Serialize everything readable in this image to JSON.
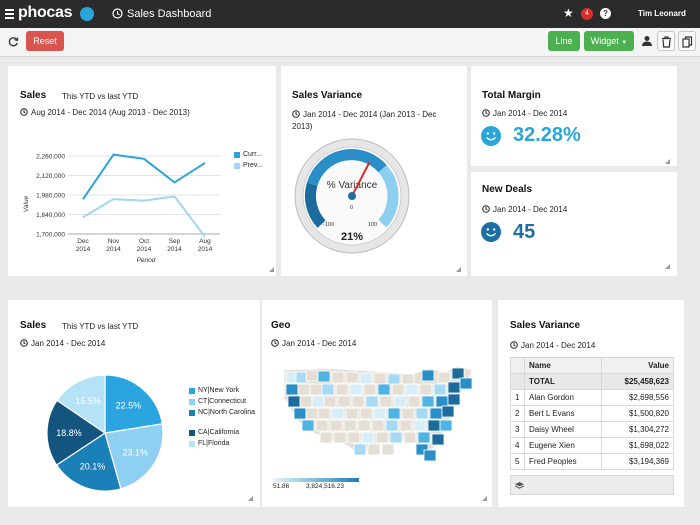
{
  "app": {
    "logo": "phocas",
    "title": "Sales Dashboard",
    "notification_count": "4",
    "user": "Tim Leonard"
  },
  "toolbar": {
    "reset_label": "Reset",
    "line_label": "Line",
    "widget_label": "Widget"
  },
  "colors": {
    "accent": "#2aa5da",
    "green": "#4caf50",
    "reset": "#d9534f",
    "dark_blue": "#1d6fa3",
    "light_blue": "#9fd6f3"
  },
  "widgets": {
    "sales_line": {
      "title": "Sales",
      "subtitle": "This YTD vs last YTD",
      "period": "Aug 2014 - Dec 2014 (Aug 2013 - Dec 2013)",
      "ylabel": "Value",
      "xlabel": "Period",
      "y_ticks": [
        "2,260,000",
        "2,120,000",
        "1,980,000",
        "1,840,000",
        "1,700,000"
      ],
      "x_ticks": [
        [
          "Dec",
          "2014"
        ],
        [
          "Nov",
          "2014"
        ],
        [
          "Oct",
          "2014"
        ],
        [
          "Sep",
          "2014"
        ],
        [
          "Aug",
          "2014"
        ]
      ],
      "legend": [
        "Curr...",
        "Prev..."
      ]
    },
    "variance_gauge": {
      "title": "Sales Variance",
      "period": "Jan 2014 - Dec 2014 (Jan 2013 - Dec 2013)",
      "label": "% Variance",
      "value_text": "21%",
      "min_label": "-100",
      "mid_label": "0",
      "max_label": "100",
      "value": 21
    },
    "margin": {
      "title": "Total Margin",
      "period": "Jan 2014 - Dec 2014",
      "value": "32.28%"
    },
    "deals": {
      "title": "New Deals",
      "period": "Jan 2014 - Dec 2014",
      "value": "45"
    },
    "sales_pie": {
      "title": "Sales",
      "subtitle": "This YTD vs last YTD",
      "period": "Jan 2014 - Dec 2014"
    },
    "geo": {
      "title": "Geo",
      "period": "Jan 2014 - Dec 2014",
      "scale_min": "51.86",
      "scale_max": "3,824,516.23"
    },
    "variance_table": {
      "title": "Sales Variance",
      "period": "Jan 2014 - Dec 2014",
      "headers": [
        "Name",
        "Value"
      ],
      "total": {
        "label": "TOTAL",
        "value": "$25,458,623"
      },
      "rows": [
        {
          "n": "1",
          "name": "Alan Gordon",
          "value": "$2,698,556"
        },
        {
          "n": "2",
          "name": "Bert L Evans",
          "value": "$1,500,820"
        },
        {
          "n": "3",
          "name": "Daisy Wheel",
          "value": "$1,304,272"
        },
        {
          "n": "4",
          "name": "Eugene Xien",
          "value": "$1,698,022"
        },
        {
          "n": "5",
          "name": "Fred Peoples",
          "value": "$3,194,369"
        }
      ]
    }
  },
  "chart_data": [
    {
      "type": "line",
      "x": [
        "Dec 2014",
        "Nov 2014",
        "Oct 2014",
        "Sep 2014",
        "Aug 2014"
      ],
      "series": [
        {
          "name": "Curr...",
          "values": [
            1950000,
            2270000,
            2240000,
            2070000,
            2210000
          ]
        },
        {
          "name": "Prev...",
          "values": [
            1820000,
            1950000,
            1940000,
            1970000,
            1680000
          ]
        }
      ],
      "ylim": [
        1700000,
        2260000
      ],
      "ylabel": "Value",
      "xlabel": "Period",
      "legend": "right"
    },
    {
      "type": "pie",
      "categories": [
        "NY|New York",
        "CT|Connecticut",
        "NC|North Carolina",
        "CA|California",
        "FL|Florida"
      ],
      "values": [
        22.5,
        23.1,
        20.1,
        18.8,
        15.5
      ],
      "labels": [
        "22.5%",
        "23.1%",
        "20.1%",
        "18.8%",
        "15.5%"
      ],
      "colors": [
        "#2aa5e0",
        "#8fd0f2",
        "#1b7fb8",
        "#14557f",
        "#b5e2f7"
      ],
      "legend": "right"
    }
  ]
}
